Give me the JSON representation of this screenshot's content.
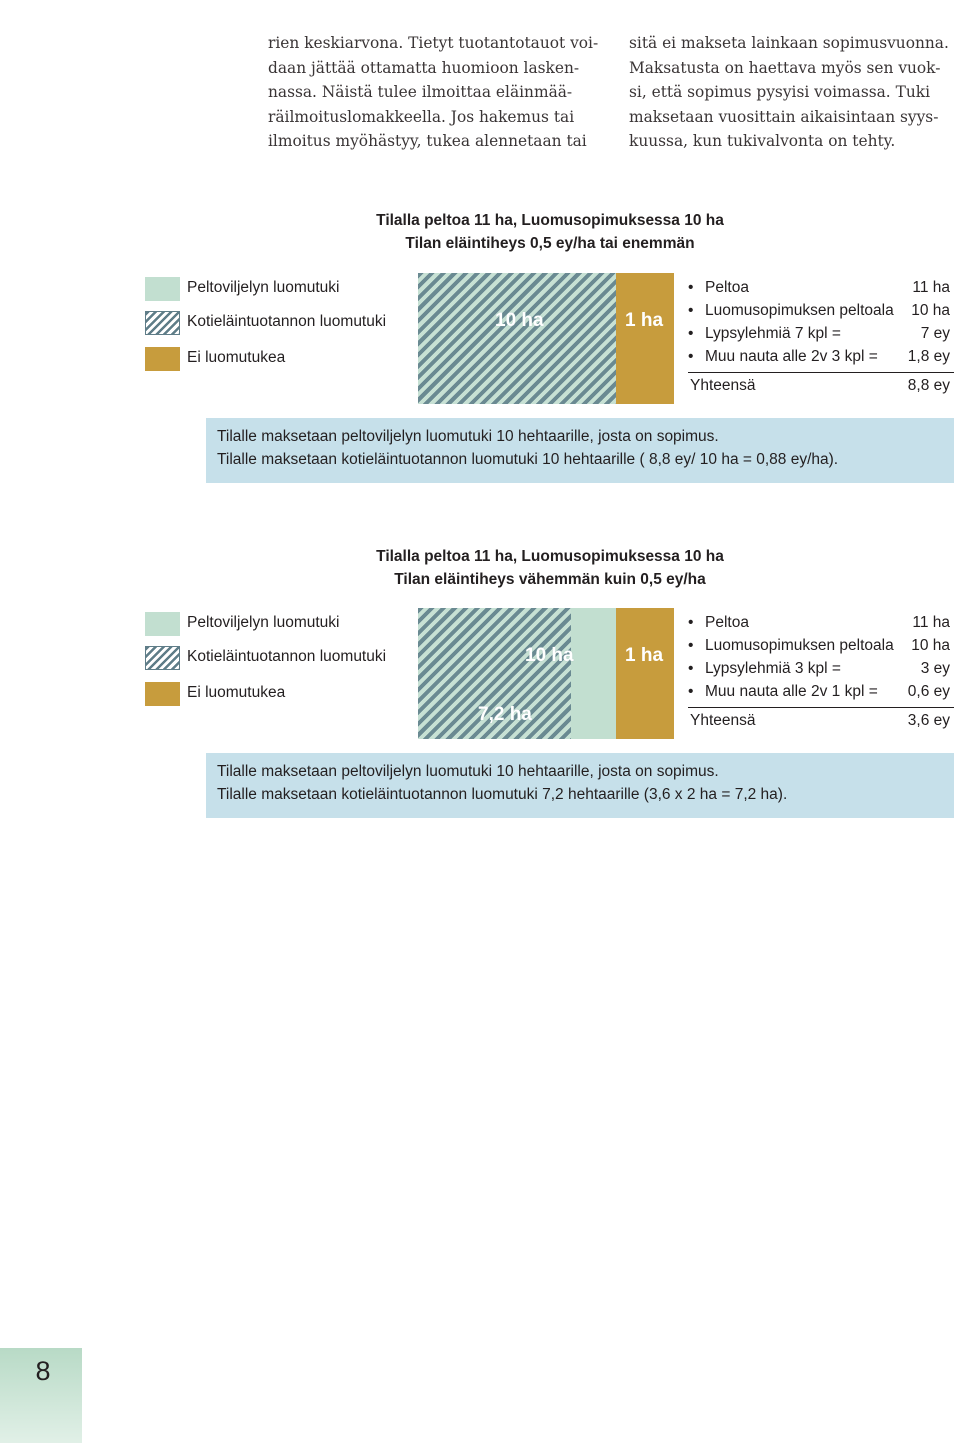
{
  "text_columns": {
    "left_lines": [
      "rien keskiarvona. Tietyt tuotantotauot voi-",
      "daan jättää ottamatta huomioon lasken-",
      "nassa. Näistä tulee ilmoittaa eläinmää-",
      "räilmoituslomakkeella. Jos hakemus tai",
      "ilmoitus myöhästyy, tukea alennetaan tai"
    ],
    "right_lines": [
      "sitä ei makseta lainkaan sopimusvuonna.",
      "Maksatusta on haettava myös sen vuok-",
      "si, että sopimus pysyisi voimassa. Tuki",
      "maksetaan vuosittain aikaisintaan syys-",
      "kuussa, kun tukivalvonta on tehty."
    ]
  },
  "legend": {
    "peltoviljely": "Peltoviljelyn luomutuki",
    "kotielain": "Kotieläintuotannon luomutuki",
    "ei_luomu": "Ei luomutukea"
  },
  "colors": {
    "peltoviljely_green": "#c2dfd0",
    "kotielain_hatch": "#6a8a92",
    "ei_luomu_gold": "#c79c3d",
    "note_box": "#c6e0ea"
  },
  "example1": {
    "title_line1": "Tilalla peltoa 11 ha, Luomusopimuksessa 10 ha",
    "title_line2": "Tilan eläintiheys 0,5 ey/ha tai enemmän",
    "bar_organic_label": "10 ha",
    "bar_conventional_label": "1 ha",
    "bar_data": {
      "total_ha": 11,
      "organic_ha": 10,
      "conventional_ha": 1,
      "livestock_support_ha": 10
    },
    "facts": [
      {
        "label": "Peltoa",
        "value": "11 ha"
      },
      {
        "label": "Luomusopimuksen peltoala",
        "value": "10 ha"
      },
      {
        "label": "Lypsylehmiä 7 kpl =",
        "value": "7 ey"
      },
      {
        "label": "Muu nauta alle 2v 3 kpl =",
        "value": "1,8 ey"
      }
    ],
    "total_label": "Yhteensä",
    "total_value": "8,8 ey",
    "note_line1": "Tilalle maksetaan peltoviljelyn luomutuki 10 hehtaarille, josta on sopimus.",
    "note_line2": "Tilalle maksetaan kotieläintuotannon luomutuki 10 hehtaarille ( 8,8 ey/ 10 ha = 0,88 ey/ha)."
  },
  "example2": {
    "title_line1": "Tilalla peltoa 11 ha, Luomusopimuksessa 10 ha",
    "title_line2": "Tilan eläintiheys vähemmän kuin 0,5 ey/ha",
    "bar_organic_label": "10 ha",
    "bar_livestock_label": "7,2 ha",
    "bar_conventional_label": "1 ha",
    "bar_data": {
      "total_ha": 11,
      "organic_ha": 10,
      "conventional_ha": 1,
      "livestock_support_ha": 7.2
    },
    "facts": [
      {
        "label": "Peltoa",
        "value": "11 ha"
      },
      {
        "label": "Luomusopimuksen peltoala",
        "value": "10 ha"
      },
      {
        "label": "Lypsylehmiä 3 kpl =",
        "value": "3 ey"
      },
      {
        "label": "Muu nauta alle 2v 1 kpl =",
        "value": "0,6 ey"
      }
    ],
    "total_label": "Yhteensä",
    "total_value": "3,6 ey",
    "note_line1": "Tilalle maksetaan peltoviljelyn luomutuki 10 hehtaarille, josta on sopimus.",
    "note_line2": "Tilalle maksetaan kotieläintuotannon luomutuki 7,2 hehtaarille (3,6 x 2 ha = 7,2 ha)."
  },
  "page_number": "8"
}
